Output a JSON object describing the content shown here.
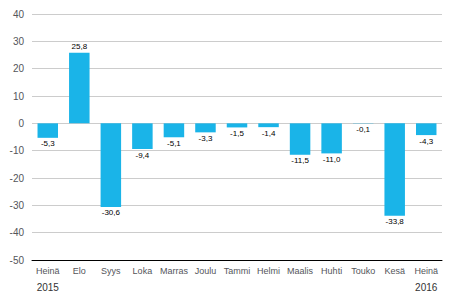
{
  "chart_data": {
    "type": "bar",
    "categories": [
      "Heinä",
      "Elo",
      "Syys",
      "Loka",
      "Marras",
      "Joulu",
      "Tammi",
      "Helmi",
      "Maalis",
      "Huhti",
      "Touko",
      "Kesä",
      "Heinä"
    ],
    "values": [
      -5.3,
      25.8,
      -30.6,
      -9.4,
      -5.1,
      -3.3,
      -1.5,
      -1.4,
      -11.5,
      -11.0,
      -0.1,
      -33.8,
      -4.3
    ],
    "value_labels": [
      "-5,3",
      "25,8",
      "-30,6",
      "-9,4",
      "-5,1",
      "-3,3",
      "-1,5",
      "-1,4",
      "-11,5",
      "-11,0",
      "-0,1",
      "-33,8",
      "-4,3"
    ],
    "data_labels": true,
    "color": "#1ab4e8",
    "ylim": [
      -50,
      40
    ],
    "yticks": [
      -50,
      -40,
      -30,
      -20,
      -10,
      0,
      10,
      20,
      30,
      40
    ],
    "grid": true,
    "annotations": [
      {
        "text": "2015",
        "index": 0
      },
      {
        "text": "2016",
        "index": 12
      }
    ]
  }
}
